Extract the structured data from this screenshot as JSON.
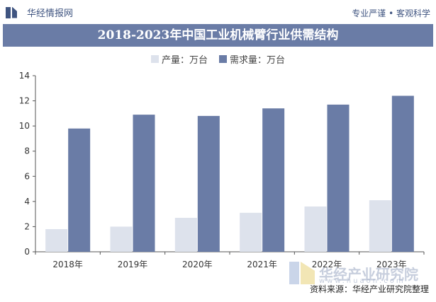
{
  "header": {
    "brand": "华经情报网",
    "slogan": "专业严谨 • 客观科学"
  },
  "footer": {
    "source": "资料来源：华经产业研究院整理",
    "watermark_text": "华经产业研究院",
    "watermark_url": "www.huaon.com"
  },
  "colors": {
    "production": "#dde2ec",
    "demand": "#6a7ca6",
    "title_bg": "#6a7ca6"
  },
  "chart_data": {
    "type": "bar",
    "title": "2018-2023年中国工业机械臂行业供需结构",
    "categories": [
      "2018年",
      "2019年",
      "2020年",
      "2021年",
      "2022年",
      "2023年"
    ],
    "series": [
      {
        "name": "产量：万台",
        "values": [
          1.8,
          2.0,
          2.7,
          3.1,
          3.6,
          4.1
        ]
      },
      {
        "name": "需求量：万台",
        "values": [
          9.8,
          10.9,
          10.8,
          11.4,
          11.7,
          12.4
        ]
      }
    ],
    "yticks": [
      "0",
      "2",
      "4",
      "6",
      "8",
      "10",
      "12",
      "14"
    ],
    "ylim": [
      0,
      14
    ],
    "legend": "top-center",
    "grid": false
  }
}
